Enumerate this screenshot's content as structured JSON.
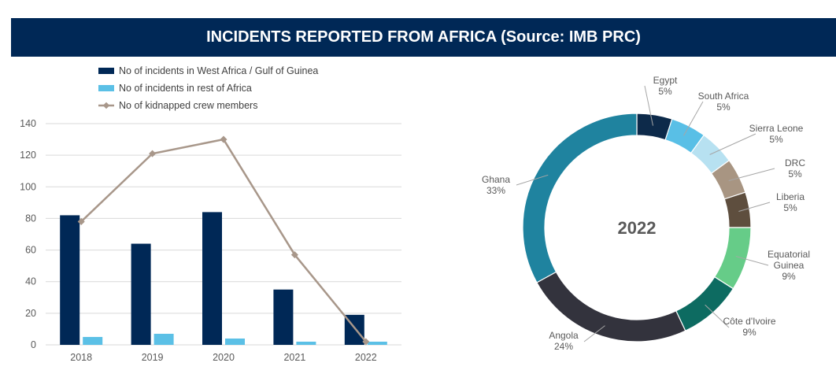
{
  "header": {
    "title": "INCIDENTS REPORTED FROM AFRICA (Source: IMB PRC)"
  },
  "colors": {
    "west_africa": "#002856",
    "rest_of_africa": "#5bc0e6",
    "kidnapped": "#a8978a",
    "grid": "#d9d9d9"
  },
  "chart_data": [
    {
      "type": "bar",
      "categories": [
        "2018",
        "2019",
        "2020",
        "2021",
        "2022"
      ],
      "series": [
        {
          "name": "No of incidents in West Africa / Gulf of Guinea",
          "kind": "bar",
          "color": "#002856",
          "values": [
            82,
            64,
            84,
            35,
            19
          ]
        },
        {
          "name": "No of incidents in rest of Africa",
          "kind": "bar",
          "color": "#5bc0e6",
          "values": [
            5,
            7,
            4,
            2,
            2
          ]
        },
        {
          "name": "No of kidnapped crew members",
          "kind": "line",
          "color": "#a8978a",
          "values": [
            78,
            121,
            130,
            57,
            2
          ]
        }
      ],
      "yticks": [
        "0",
        "20",
        "40",
        "60",
        "80",
        "100",
        "120",
        "140"
      ],
      "ylim": [
        0,
        140
      ],
      "grid": true,
      "legend_position": "top-left"
    },
    {
      "type": "pie",
      "donut": true,
      "center_label": "2022",
      "slices": [
        {
          "name": "Egypt",
          "percent_label": "5%",
          "value": 5,
          "color": "#0d2a4a"
        },
        {
          "name": "South Africa",
          "percent_label": "5%",
          "value": 5,
          "color": "#59bfe6"
        },
        {
          "name": "Sierra Leone",
          "percent_label": "5%",
          "value": 5,
          "color": "#b7e1f1"
        },
        {
          "name": "DRC",
          "percent_label": "5%",
          "value": 5,
          "color": "#a89582"
        },
        {
          "name": "Liberia",
          "percent_label": "5%",
          "value": 5,
          "color": "#5e4e3e"
        },
        {
          "name": "Equatorial Guinea",
          "name_lines": [
            "Equatorial",
            "Guinea"
          ],
          "percent_label": "9%",
          "value": 9,
          "color": "#66cc88"
        },
        {
          "name": "Côte d'Ivoire",
          "percent_label": "9%",
          "value": 9,
          "color": "#0d6b61"
        },
        {
          "name": "Angola",
          "percent_label": "24%",
          "value": 24,
          "color": "#33333d"
        },
        {
          "name": "Ghana",
          "percent_label": "33%",
          "value": 33,
          "color": "#1f839f"
        }
      ]
    }
  ]
}
